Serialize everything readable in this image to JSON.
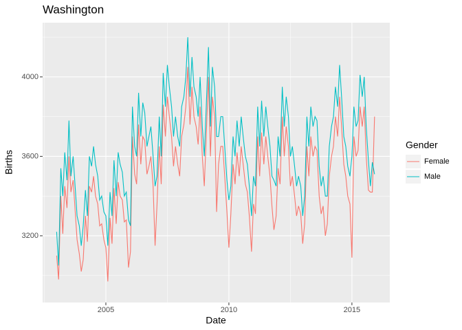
{
  "chart_data": {
    "type": "line",
    "title": "Washington",
    "x_label": "Date",
    "y_label": "Births",
    "legend_title": "Gender",
    "legend_position": "right",
    "grid": true,
    "xlim": [
      2002.43,
      2016.54
    ],
    "ylim": [
      2864,
      4273
    ],
    "xticks": [
      2005,
      2010,
      2015
    ],
    "yticks": [
      3200,
      3600,
      4000
    ],
    "x": [
      2003,
      2003.08,
      2003.17,
      2003.25,
      2003.33,
      2003.42,
      2003.5,
      2003.58,
      2003.67,
      2003.75,
      2003.83,
      2003.92,
      2004,
      2004.08,
      2004.17,
      2004.25,
      2004.33,
      2004.42,
      2004.5,
      2004.58,
      2004.67,
      2004.75,
      2004.83,
      2004.92,
      2005,
      2005.08,
      2005.17,
      2005.25,
      2005.33,
      2005.42,
      2005.5,
      2005.58,
      2005.67,
      2005.75,
      2005.83,
      2005.92,
      2006,
      2006.08,
      2006.17,
      2006.25,
      2006.33,
      2006.42,
      2006.5,
      2006.58,
      2006.67,
      2006.75,
      2006.83,
      2006.92,
      2007,
      2007.08,
      2007.17,
      2007.25,
      2007.33,
      2007.42,
      2007.5,
      2007.58,
      2007.67,
      2007.75,
      2007.83,
      2007.92,
      2008,
      2008.08,
      2008.17,
      2008.25,
      2008.33,
      2008.42,
      2008.5,
      2008.58,
      2008.67,
      2008.75,
      2008.83,
      2008.92,
      2009,
      2009.08,
      2009.17,
      2009.25,
      2009.33,
      2009.42,
      2009.5,
      2009.58,
      2009.67,
      2009.75,
      2009.83,
      2009.92,
      2010,
      2010.08,
      2010.17,
      2010.25,
      2010.33,
      2010.42,
      2010.5,
      2010.58,
      2010.67,
      2010.75,
      2010.83,
      2010.92,
      2011,
      2011.08,
      2011.17,
      2011.25,
      2011.33,
      2011.42,
      2011.5,
      2011.58,
      2011.67,
      2011.75,
      2011.83,
      2011.92,
      2012,
      2012.08,
      2012.17,
      2012.25,
      2012.33,
      2012.42,
      2012.5,
      2012.58,
      2012.67,
      2012.75,
      2012.83,
      2012.92,
      2013,
      2013.08,
      2013.17,
      2013.25,
      2013.33,
      2013.42,
      2013.5,
      2013.58,
      2013.67,
      2013.75,
      2013.83,
      2013.92,
      2014,
      2014.08,
      2014.17,
      2014.25,
      2014.33,
      2014.42,
      2014.5,
      2014.58,
      2014.67,
      2014.75,
      2014.83,
      2014.92,
      2015,
      2015.08,
      2015.17,
      2015.25,
      2015.33,
      2015.42,
      2015.5,
      2015.58,
      2015.67,
      2015.75,
      2015.83,
      2015.92
    ],
    "series": [
      {
        "name": "Female",
        "color": "#F8766D",
        "values": [
          3100,
          2980,
          3400,
          3210,
          3450,
          3340,
          3600,
          3420,
          3480,
          3330,
          3180,
          3110,
          3020,
          3080,
          3300,
          3170,
          3450,
          3420,
          3500,
          3400,
          3360,
          3250,
          3260,
          3180,
          3140,
          2970,
          3290,
          3160,
          3440,
          3260,
          3470,
          3400,
          3380,
          3270,
          3280,
          3040,
          3120,
          3700,
          3510,
          3460,
          3760,
          3560,
          3700,
          3680,
          3510,
          3550,
          3600,
          3450,
          3150,
          3360,
          3650,
          3460,
          3860,
          3700,
          3900,
          3800,
          3700,
          3550,
          3650,
          3560,
          3500,
          3700,
          3760,
          3850,
          4050,
          3760,
          3950,
          3800,
          3750,
          3660,
          3850,
          3600,
          3450,
          3700,
          4000,
          3600,
          3900,
          3800,
          3320,
          3560,
          3650,
          3650,
          3500,
          3320,
          3140,
          3310,
          3560,
          3460,
          3620,
          3500,
          3650,
          3560,
          3460,
          3420,
          3300,
          3120,
          3360,
          3310,
          3700,
          3500,
          3720,
          3560,
          3700,
          3600,
          3500,
          3350,
          3230,
          3300,
          3540,
          3460,
          3800,
          3600,
          3750,
          3650,
          3450,
          3500,
          3400,
          3300,
          3350,
          3310,
          3160,
          3260,
          3650,
          3500,
          3700,
          3600,
          3650,
          3630,
          3400,
          3310,
          3350,
          3200,
          3260,
          3500,
          3600,
          3650,
          3800,
          3700,
          3900,
          3750,
          3560,
          3500,
          3400,
          3360,
          3090,
          3700,
          3600,
          3630,
          3850,
          3750,
          3850,
          3600,
          3430,
          3420,
          3420,
          3800
        ]
      },
      {
        "name": "Male",
        "color": "#00BFC4",
        "values": [
          3220,
          3050,
          3540,
          3400,
          3620,
          3480,
          3780,
          3500,
          3600,
          3450,
          3300,
          3250,
          3150,
          3250,
          3430,
          3300,
          3600,
          3550,
          3650,
          3560,
          3500,
          3380,
          3400,
          3320,
          3300,
          3150,
          3420,
          3300,
          3580,
          3400,
          3620,
          3560,
          3520,
          3400,
          3420,
          3280,
          3250,
          3850,
          3650,
          3600,
          3920,
          3700,
          3870,
          3820,
          3650,
          3700,
          3750,
          3600,
          3450,
          3500,
          3800,
          3600,
          4020,
          3850,
          4060,
          3950,
          3850,
          3700,
          3800,
          3700,
          3650,
          3850,
          3900,
          4000,
          4200,
          3900,
          4100,
          3950,
          3900,
          3800,
          4000,
          3750,
          3600,
          3850,
          4150,
          3750,
          4050,
          3950,
          3700,
          3700,
          3800,
          3800,
          3650,
          3480,
          3380,
          3450,
          3700,
          3600,
          3780,
          3650,
          3800,
          3700,
          3600,
          3560,
          3450,
          3300,
          3500,
          3450,
          3850,
          3650,
          3880,
          3700,
          3850,
          3750,
          3650,
          3500,
          3480,
          3450,
          3700,
          3600,
          3950,
          3750,
          3900,
          3800,
          3600,
          3650,
          3550,
          3450,
          3500,
          3450,
          3300,
          3400,
          3800,
          3650,
          3850,
          3750,
          3800,
          3780,
          3550,
          3450,
          3500,
          3400,
          3400,
          3650,
          3750,
          3800,
          3950,
          3850,
          4060,
          3900,
          3700,
          3650,
          3550,
          3500,
          3600,
          3850,
          3750,
          3780,
          4010,
          3900,
          4000,
          3750,
          3580,
          3450,
          3570,
          3510
        ]
      }
    ]
  }
}
